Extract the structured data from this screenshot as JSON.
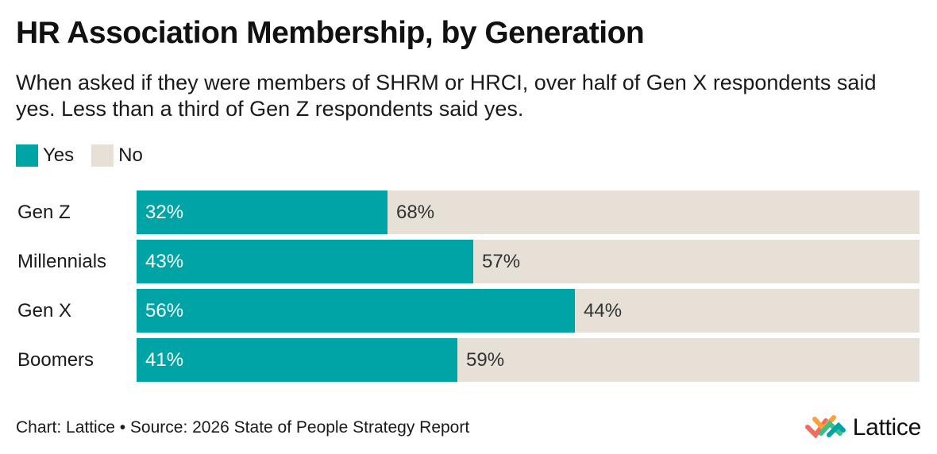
{
  "header": {
    "title": "HR Association Membership, by Generation",
    "subtitle": "When asked if they were members of SHRM or HRCI, over half of Gen X respondents said yes. Less than a third of Gen Z respondents said yes."
  },
  "legend": {
    "items": [
      {
        "label": "Yes",
        "color": "#00a3a6"
      },
      {
        "label": "No",
        "color": "#e6e0d6"
      }
    ]
  },
  "chart_data": {
    "type": "bar",
    "orientation": "horizontal",
    "stacked": true,
    "normalized": true,
    "categories": [
      "Gen Z",
      "Millennials",
      "Gen X",
      "Boomers"
    ],
    "series": [
      {
        "name": "Yes",
        "values": [
          32,
          43,
          56,
          41
        ],
        "labels": [
          "32%",
          "43%",
          "56%",
          "41%"
        ],
        "color": "#00a3a6",
        "label_color": "#ffffff"
      },
      {
        "name": "No",
        "values": [
          68,
          57,
          44,
          59
        ],
        "labels": [
          "68%",
          "57%",
          "44%",
          "59%"
        ],
        "color": "#e6e0d6",
        "label_color": "#333333"
      }
    ],
    "title": "HR Association Membership, by Generation",
    "xlabel": "",
    "ylabel": "",
    "xlim": [
      0,
      100
    ],
    "grid": false,
    "legend_position": "top-left"
  },
  "footer": {
    "source": "Chart: Lattice • Source: 2026 State of People Strategy Report"
  },
  "logo": {
    "text": "Lattice",
    "icon": "lattice-logo-icon",
    "colors": [
      "#f26b5b",
      "#f7a33a",
      "#3bbf8c",
      "#00a3a6"
    ]
  }
}
